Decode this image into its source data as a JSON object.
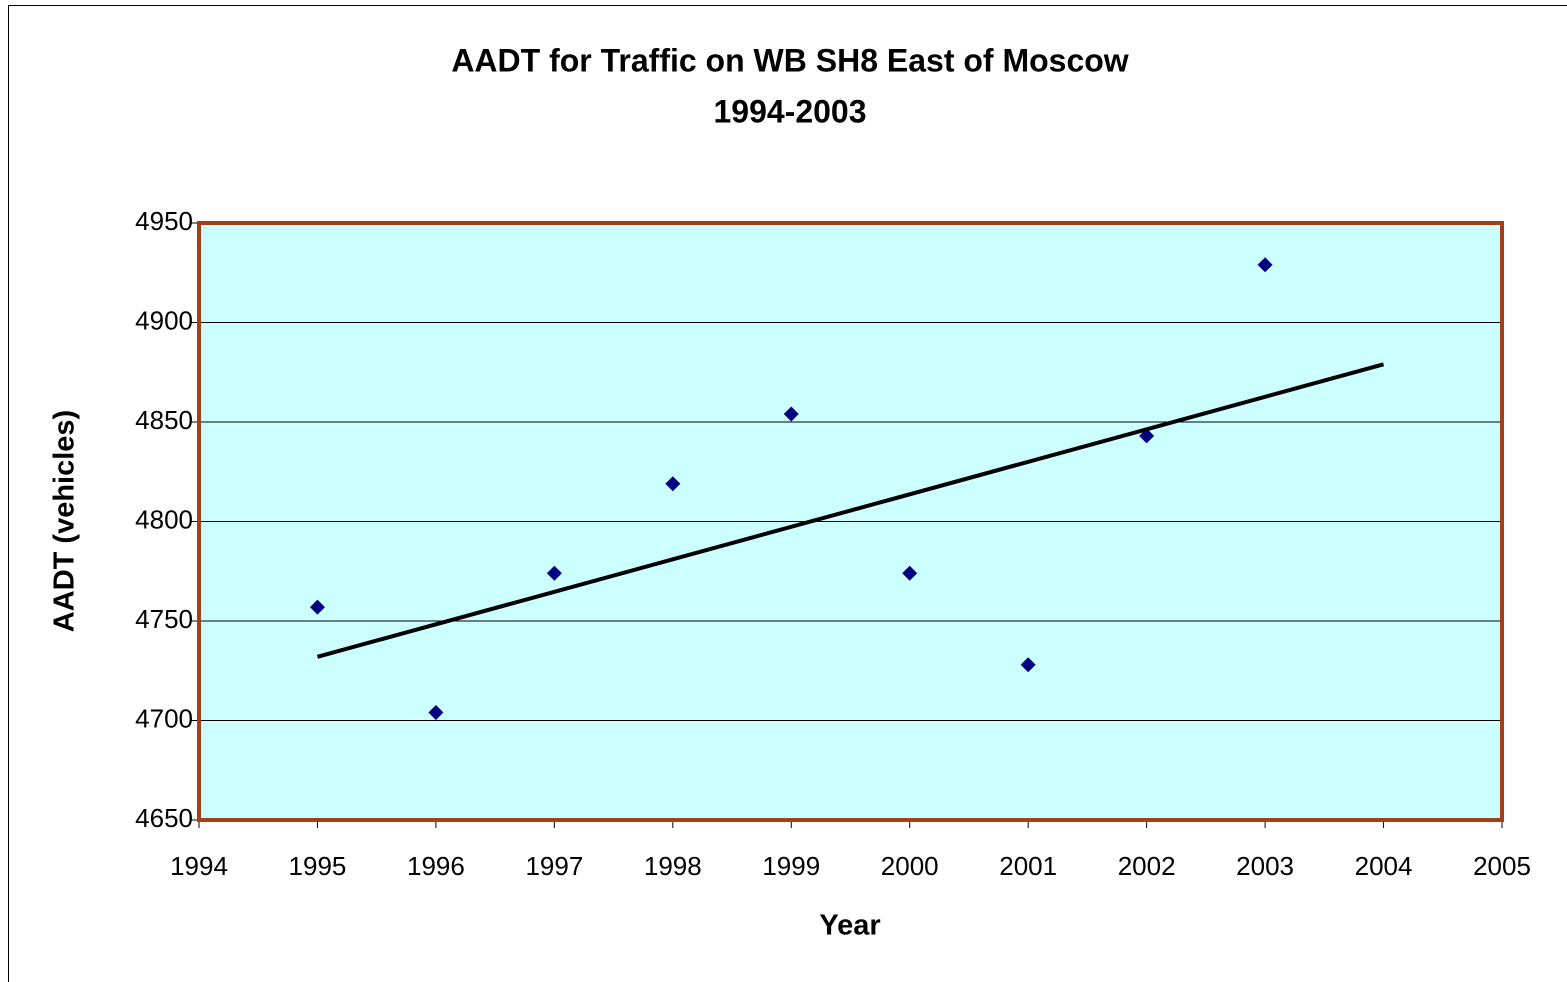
{
  "chart_data": {
    "type": "scatter",
    "title": "AADT for Traffic on WB SH8 East of Moscow",
    "subtitle": "1994-2003",
    "x_label": "Year",
    "y_label": "AADT (vehicles)",
    "x": [
      1995,
      1996,
      1997,
      1998,
      1999,
      2000,
      2001,
      2002,
      2003
    ],
    "series": [
      {
        "color": "#000080",
        "marker": "diamond",
        "values": [
          4757,
          4704,
          4774,
          4819,
          4854,
          4774,
          4728,
          4843,
          4929
        ]
      }
    ],
    "trendline": {
      "type": "linear",
      "color": "#000000",
      "x": [
        1995,
        2004
      ],
      "values": [
        4732,
        4879
      ]
    },
    "xlim": [
      1994,
      2005
    ],
    "xticks": [
      1994,
      1995,
      1996,
      1997,
      1998,
      1999,
      2000,
      2001,
      2002,
      2003,
      2004,
      2005
    ],
    "ylim": [
      4650,
      4950
    ],
    "yticks": [
      4650,
      4700,
      4750,
      4800,
      4850,
      4900,
      4950
    ],
    "grid": true,
    "plot_background": "#ccffff",
    "plot_border": "#a3401a"
  }
}
